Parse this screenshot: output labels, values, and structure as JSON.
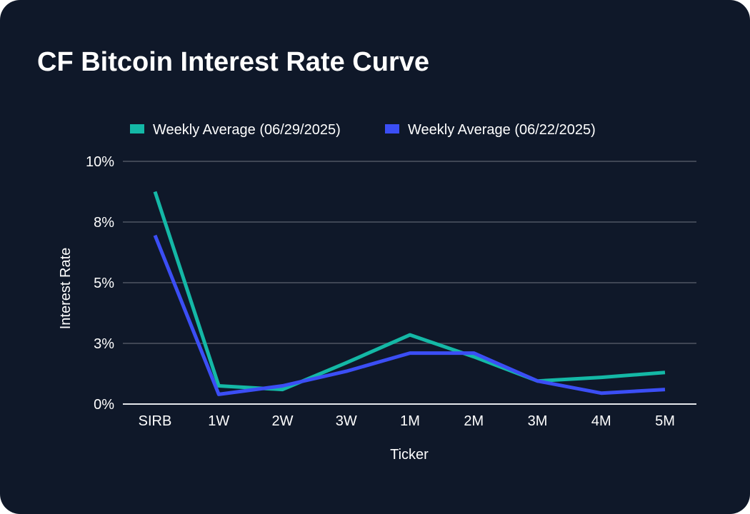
{
  "chart_data": {
    "type": "line",
    "title": "CF Bitcoin Interest Rate Curve",
    "xlabel": "Ticker",
    "ylabel": "Interest Rate",
    "categories": [
      "SIRB",
      "1W",
      "2W",
      "3W",
      "1M",
      "2M",
      "3M",
      "4M",
      "5M"
    ],
    "yticks": [
      {
        "value": 0,
        "label": "0%"
      },
      {
        "value": 2.5,
        "label": "3%"
      },
      {
        "value": 5,
        "label": "5%"
      },
      {
        "value": 7.5,
        "label": "8%"
      },
      {
        "value": 10,
        "label": "10%"
      }
    ],
    "ylim": [
      0,
      10
    ],
    "grid": true,
    "legend_position": "top",
    "series": [
      {
        "name": "Weekly Average (06/29/2025)",
        "color": "#14b8a6",
        "values": [
          8.75,
          0.75,
          0.6,
          1.7,
          2.85,
          1.95,
          0.95,
          1.1,
          1.3
        ]
      },
      {
        "name": "Weekly Average (06/22/2025)",
        "color": "#3b4ef5",
        "values": [
          6.95,
          0.4,
          0.75,
          1.35,
          2.1,
          2.1,
          0.95,
          0.45,
          0.6
        ]
      }
    ]
  },
  "colors": {
    "background": "#0f1829",
    "gridline": "#3f4654",
    "axis": "#e5e7eb",
    "text": "#ffffff"
  }
}
